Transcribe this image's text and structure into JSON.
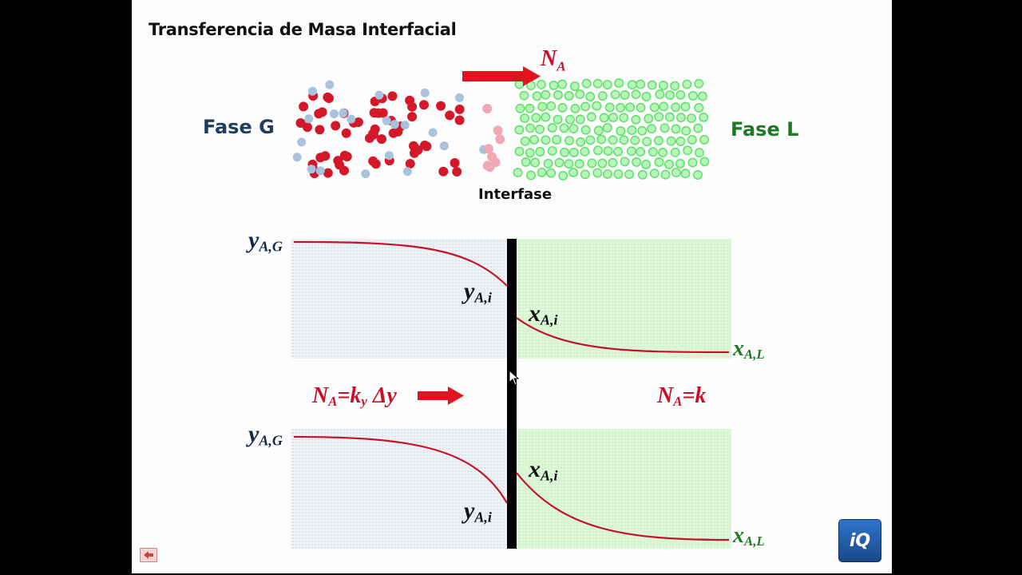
{
  "slide": {
    "title": "Transferencia de Masa Interfacial",
    "phase_g": "Fase G",
    "phase_l": "Fase L",
    "interface_label": "Interfase",
    "flux_top": {
      "symbol": "N",
      "sub": "A"
    }
  },
  "profile_top": {
    "y_bulk": {
      "symbol": "y",
      "sub": "A,G"
    },
    "y_int": {
      "symbol": "y",
      "sub": "A,i"
    },
    "x_int": {
      "symbol": "x",
      "sub": "A,i"
    },
    "x_bulk": {
      "symbol": "x",
      "sub": "A,L"
    }
  },
  "equations": {
    "gas_side": {
      "n": "N",
      "n_sub": "A",
      "eq": "=k",
      "k_sub": "y",
      "delta": " Δy"
    },
    "liquid_side": {
      "n": "N",
      "n_sub": "A",
      "eq": "=k"
    }
  },
  "profile_bottom": {
    "y_bulk": {
      "symbol": "y",
      "sub": "A,G"
    },
    "y_int": {
      "symbol": "y",
      "sub": "A,i"
    },
    "x_int": {
      "symbol": "x",
      "sub": "A,i"
    },
    "x_bulk": {
      "symbol": "x",
      "sub": "A,L"
    }
  },
  "logo": {
    "text": "iQ"
  },
  "colors": {
    "gas_red": "#d3182a",
    "gas_blue": "#a9c3dd",
    "liquid_green": "#5fe06a",
    "curve_red": "#c4122b",
    "interface_black": "#000000"
  },
  "icons": {
    "back": "left-arrow-icon",
    "cursor": "mouse-pointer-icon"
  }
}
